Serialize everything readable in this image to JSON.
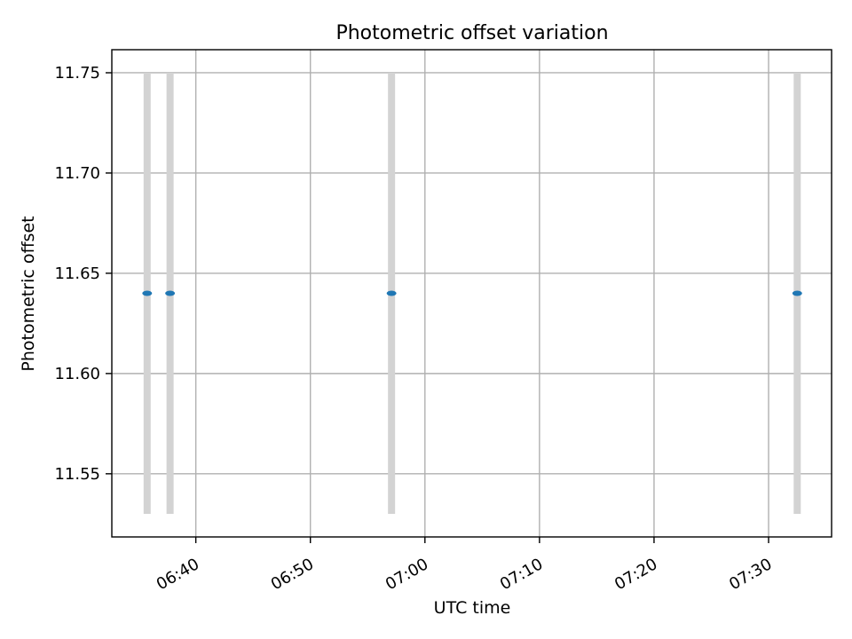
{
  "chart_data": {
    "type": "scatter",
    "title": "Photometric offset variation",
    "xlabel": "UTC time",
    "ylabel": "Photometric offset",
    "xlim": [
      "06:32:40",
      "07:35:30"
    ],
    "ylim": [
      11.5185,
      11.7615
    ],
    "x_ticks": [
      "06:40",
      "06:50",
      "07:00",
      "07:10",
      "07:20",
      "07:30"
    ],
    "y_ticks": [
      "11.55",
      "11.60",
      "11.65",
      "11.70",
      "11.75"
    ],
    "grid": true,
    "legend": "none",
    "series": [
      {
        "x": [
          "06:35:45",
          "06:37:45",
          "06:57:05",
          "07:32:30"
        ],
        "y": [
          11.64,
          11.64,
          11.64,
          11.64
        ],
        "error_low": [
          11.53,
          11.53,
          11.53,
          11.53
        ],
        "error_high": [
          11.75,
          11.75,
          11.75,
          11.75
        ]
      }
    ],
    "colors": {
      "marker": "#1f77b4",
      "errorbar": "#d3d3d3",
      "grid": "#b0b0b0",
      "axes": "#000000"
    }
  }
}
